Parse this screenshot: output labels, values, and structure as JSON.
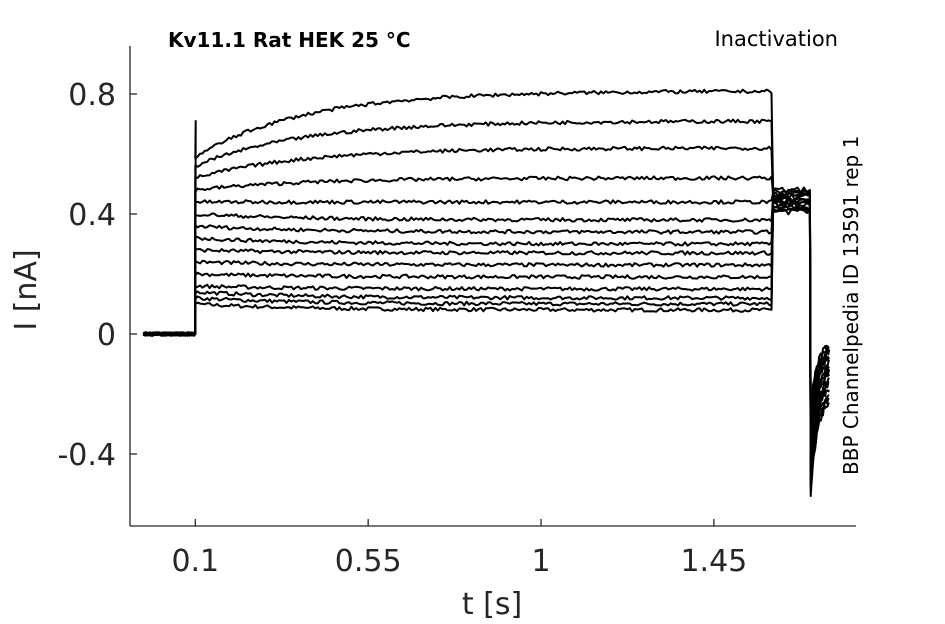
{
  "chart_data": {
    "type": "line",
    "title": "Kv11.1  Rat  HEK  25 °C",
    "protocol": "Inactivation",
    "side_label": "BBP Channelpedia ID 13591 rep 1",
    "xlabel": "t [s]",
    "ylabel": "I [nA]",
    "xlim": [
      -0.07,
      1.82
    ],
    "ylim": [
      -0.64,
      0.96
    ],
    "xticks": [
      0.1,
      0.55,
      1,
      1.45
    ],
    "xtick_labels": [
      "0.1",
      "0.55",
      "1",
      "1.45"
    ],
    "yticks": [
      -0.4,
      0,
      0.4,
      0.8
    ],
    "ytick_labels": [
      "-0.4",
      "0",
      "0.4",
      "0.8"
    ],
    "grid": false,
    "line_color": "#000000",
    "segments": {
      "holding_end": 0.1,
      "step_end": 1.6,
      "tail_start": 1.7,
      "end": 1.75
    },
    "series": [
      {
        "step_start": 0.1,
        "step_end": 0.08,
        "tail_plateau": 0.41,
        "tail_peak": -0.54,
        "tail_end": -0.22
      },
      {
        "step_start": 0.12,
        "step_end": 0.1,
        "tail_plateau": 0.41,
        "tail_peak": -0.52,
        "tail_end": -0.2
      },
      {
        "step_start": 0.14,
        "step_end": 0.12,
        "tail_plateau": 0.42,
        "tail_peak": -0.5,
        "tail_end": -0.19
      },
      {
        "step_start": 0.16,
        "step_end": 0.15,
        "tail_plateau": 0.42,
        "tail_peak": -0.48,
        "tail_end": -0.17
      },
      {
        "step_start": 0.2,
        "step_end": 0.19,
        "tail_plateau": 0.43,
        "tail_peak": -0.46,
        "tail_end": -0.15
      },
      {
        "step_start": 0.24,
        "step_end": 0.23,
        "tail_plateau": 0.43,
        "tail_peak": -0.44,
        "tail_end": -0.14
      },
      {
        "step_start": 0.28,
        "step_end": 0.27,
        "tail_plateau": 0.44,
        "tail_peak": -0.42,
        "tail_end": -0.12
      },
      {
        "step_start": 0.32,
        "step_end": 0.3,
        "tail_plateau": 0.44,
        "tail_peak": -0.4,
        "tail_end": -0.11
      },
      {
        "step_start": 0.36,
        "step_end": 0.34,
        "tail_plateau": 0.45,
        "tail_peak": -0.38,
        "tail_end": -0.1
      },
      {
        "step_start": 0.4,
        "step_end": 0.38,
        "tail_plateau": 0.45,
        "tail_peak": -0.35,
        "tail_end": -0.08
      },
      {
        "step_start": 0.44,
        "step_end": 0.44,
        "tail_plateau": 0.46,
        "tail_peak": -0.33,
        "tail_end": -0.07
      },
      {
        "step_start": 0.48,
        "step_end": 0.52,
        "tail_plateau": 0.46,
        "tail_peak": -0.3,
        "tail_end": -0.06
      },
      {
        "step_start": 0.52,
        "step_end": 0.62,
        "tail_plateau": 0.47,
        "tail_peak": -0.28,
        "tail_end": -0.05
      },
      {
        "step_start": 0.56,
        "step_end": 0.71,
        "tail_plateau": 0.47,
        "tail_peak": -0.26,
        "tail_end": -0.04
      },
      {
        "step_start": 0.59,
        "step_end": 0.81,
        "tail_plateau": 0.48,
        "tail_peak": -0.24,
        "tail_end": -0.03
      }
    ]
  }
}
